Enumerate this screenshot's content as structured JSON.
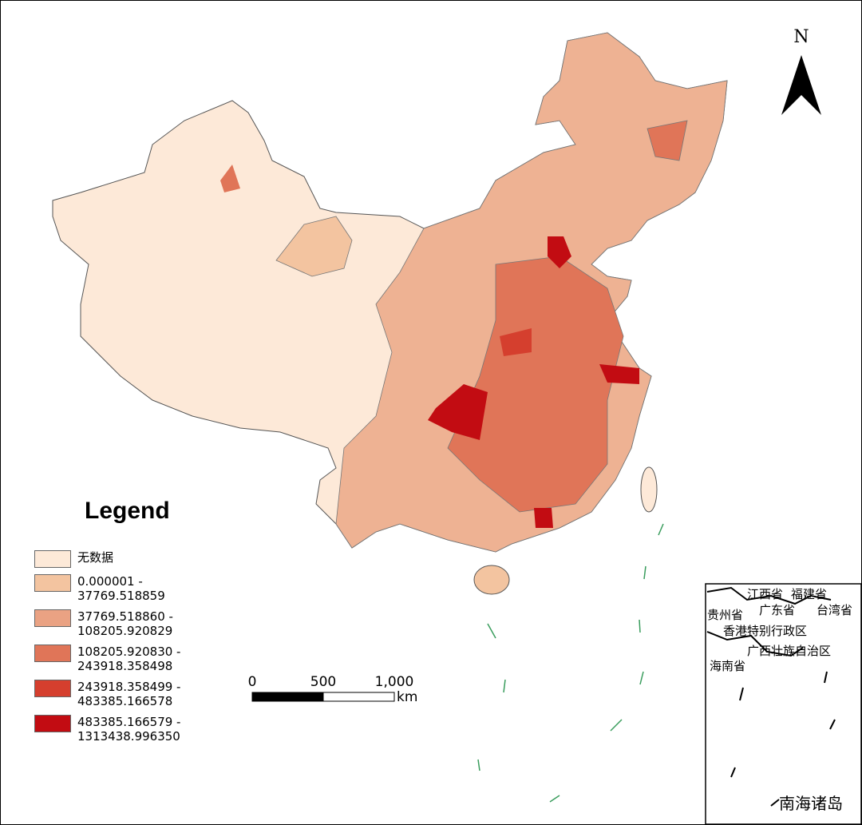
{
  "legend": {
    "title": "Legend",
    "items": [
      {
        "label": "无数据",
        "color": "#fde9d8"
      },
      {
        "label": "0.000001 - 37769.518859",
        "color": "#f3c4a0"
      },
      {
        "label": "37769.518860 - 108205.920829",
        "color": "#eaa283"
      },
      {
        "label": "108205.920830 - 243918.358498",
        "color": "#e07558"
      },
      {
        "label": "243918.358499 - 483385.166578",
        "color": "#d53f2e"
      },
      {
        "label": "483385.166579 - 1313438.996350",
        "color": "#c20c12"
      }
    ]
  },
  "scale_bar": {
    "ticks": [
      0,
      500,
      {
        "value": 1000,
        "label": "1,000"
      }
    ],
    "unit": "km"
  },
  "north_arrow": {
    "label": "N"
  },
  "inset": {
    "title": "南海诸岛",
    "labels": [
      "江西省",
      "福建省",
      "贵州省",
      "广东省",
      "台湾省",
      "香港特别行政区",
      "广西壮族自治区",
      "海南省"
    ]
  }
}
